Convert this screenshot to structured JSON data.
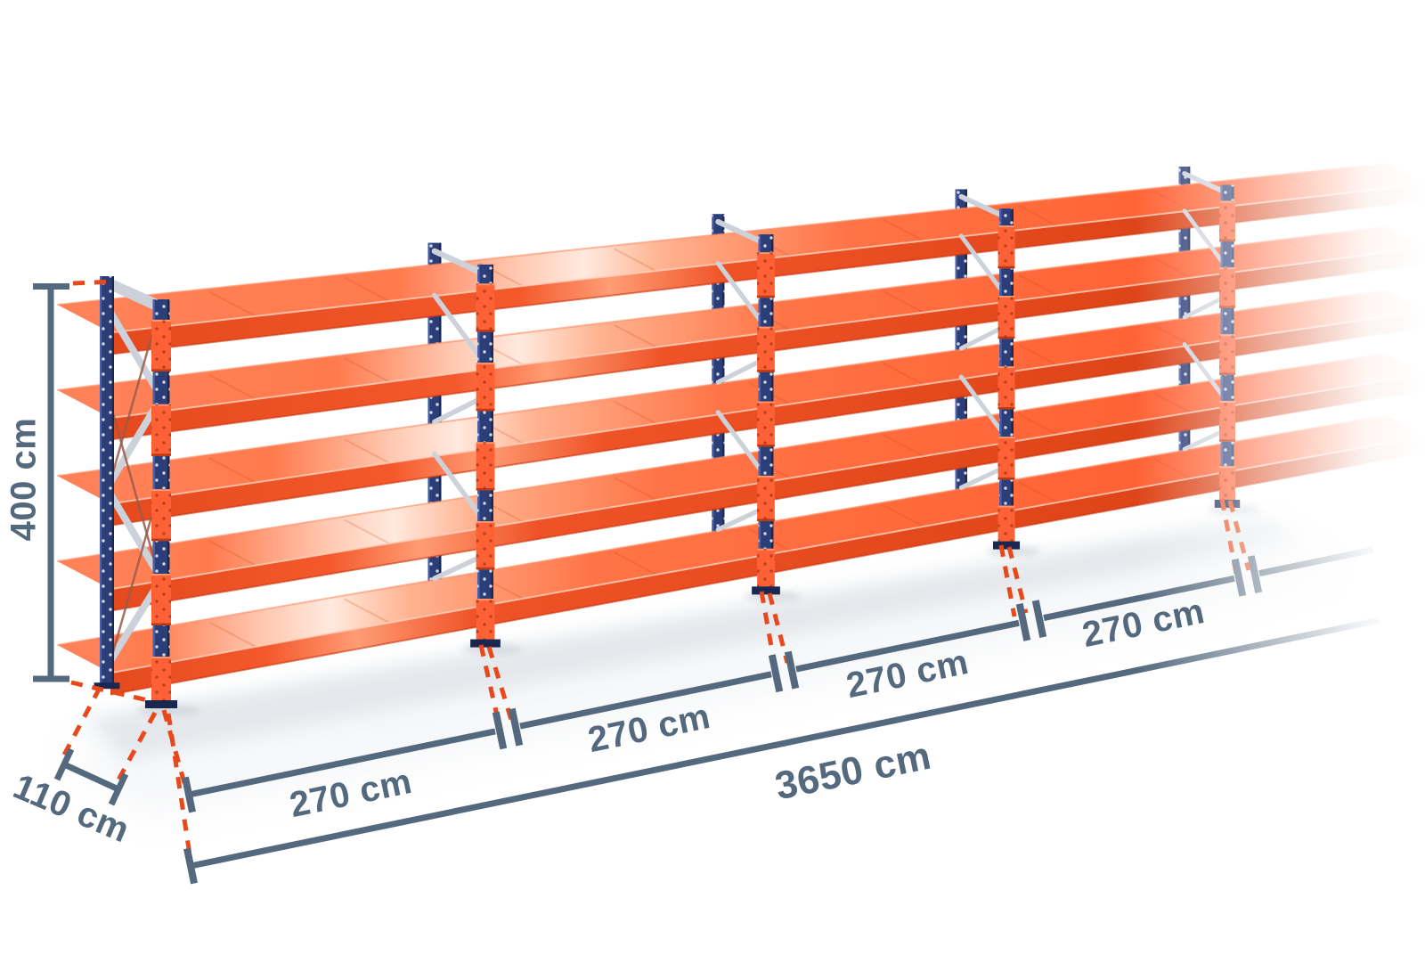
{
  "illustration": {
    "subject": "longspan-shelving-run",
    "shelf_levels": 5,
    "visible_frames": 5
  },
  "dimensions": {
    "height": {
      "label": "400 cm"
    },
    "depth": {
      "label": "110 cm"
    },
    "bays": [
      {
        "label": "270 cm"
      },
      {
        "label": "270 cm"
      },
      {
        "label": "270 cm"
      },
      {
        "label": "270 cm"
      }
    ],
    "total_length": {
      "label": "3650 cm"
    }
  },
  "colors": {
    "dimension": "#54697d",
    "leader": "#e8491c",
    "shelf_orange": "#ff6a3e",
    "shelf_orange_dark": "#e8481f",
    "upright_navy": "#2c3e78",
    "upright_navy_dark": "#1a2750",
    "connector_orange": "#ff6136",
    "brace_silver": "#cdd2da",
    "background": "#ffffff"
  }
}
